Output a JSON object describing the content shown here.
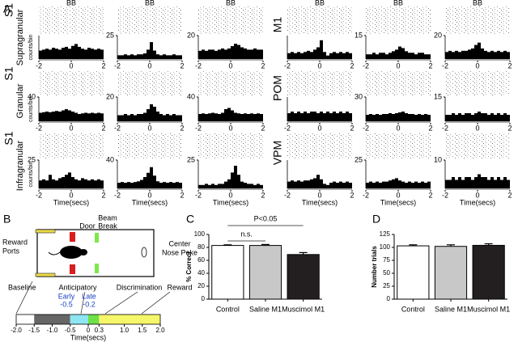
{
  "figure": {
    "panel_labels": [
      "A",
      "B",
      "C",
      "D"
    ]
  },
  "panel_a": {
    "rows": [
      {
        "area": "S1",
        "layer": "Supragranular",
        "ylabel": "counts/bin"
      },
      {
        "area": "S1",
        "layer": "Granular",
        "ylabel": "counts/bin"
      },
      {
        "area": "S1",
        "layer": "Infragranular",
        "ylabel": "counts/bin"
      }
    ],
    "right_rows": [
      {
        "area": "M1"
      },
      {
        "area": "POM"
      },
      {
        "area": "VPM"
      }
    ]
  },
  "panel_b": {
    "door": "Door",
    "beam_break": [
      "Beam",
      "Break"
    ],
    "reward_ports": [
      "Reward",
      "Ports"
    ],
    "center_nose_poke": [
      "Center",
      "Nose Poke"
    ],
    "baseline": "Baseline",
    "anticipatory": "Anticipatory",
    "discrimination": "Discrimination",
    "reward": "Reward",
    "early": "Early",
    "early_time": -0.5,
    "late": "Late",
    "late_time": -0.2,
    "timeline": {
      "xlim": [
        -2,
        2
      ],
      "xticks": [
        {
          "value": -2,
          "label": "-2.0"
        },
        -1.5,
        {
          "value": -1,
          "label": "-1.0"
        },
        -0.5,
        0,
        0.3,
        {
          "value": 1,
          "label": "1.0"
        },
        1.5,
        {
          "value": 2,
          "label": "2.0"
        }
      ],
      "xlabel": "Time(secs)",
      "segments": [
        {
          "start": -2,
          "end": -1.5,
          "color": "#ffffff"
        },
        {
          "start": -1.5,
          "end": -0.5,
          "color": "#666666"
        },
        {
          "start": -0.5,
          "end": 0,
          "color": "#8ee6f2"
        },
        {
          "start": 0,
          "end": 0.3,
          "color": "#6ee048"
        },
        {
          "start": 0.3,
          "end": 2,
          "color": "#f6f66a"
        }
      ]
    }
  },
  "chart_data": [
    {
      "type": "histogram",
      "title": "BB",
      "bins": [
        -2,
        -1.8,
        -1.6,
        -1.4,
        -1.2,
        -1,
        -0.8,
        -0.6,
        -0.4,
        -0.2,
        0,
        0.2,
        0.4,
        0.6,
        0.8,
        1,
        1.2,
        1.4,
        1.6,
        1.8,
        2
      ],
      "values": [
        9,
        10,
        11,
        10,
        12,
        11,
        10,
        12,
        13,
        11,
        14,
        16,
        13,
        11,
        10,
        12,
        11,
        10,
        11,
        10
      ],
      "xlim": [
        -2,
        2
      ],
      "xticks": [
        -2,
        0,
        2
      ],
      "ylim": [
        0,
        25
      ],
      "color": "#000000"
    },
    {
      "type": "histogram",
      "title": "BB",
      "bins": [
        -2,
        -1.8,
        -1.6,
        -1.4,
        -1.2,
        -1,
        -0.8,
        -0.6,
        -0.4,
        -0.2,
        0,
        0.2,
        0.4,
        0.6,
        0.8,
        1,
        1.2,
        1.4,
        1.6,
        1.8,
        2
      ],
      "values": [
        4,
        4,
        5,
        4,
        5,
        4,
        5,
        5,
        6,
        10,
        18,
        9,
        5,
        4,
        5,
        4,
        4,
        5,
        4,
        4
      ],
      "xlim": [
        -2,
        2
      ],
      "xticks": [
        -2,
        0,
        2
      ],
      "ylim": [
        0,
        25
      ],
      "yticks": [
        25
      ],
      "color": "#000000"
    },
    {
      "type": "histogram",
      "title": "BB",
      "bins": [
        -2,
        -1.8,
        -1.6,
        -1.4,
        -1.2,
        -1,
        -0.8,
        -0.6,
        -0.4,
        -0.2,
        0,
        0.2,
        0.4,
        0.6,
        0.8,
        1,
        1.2,
        1.4,
        1.6,
        1.8,
        2
      ],
      "values": [
        7,
        8,
        7,
        8,
        8,
        7,
        8,
        9,
        8,
        9,
        11,
        13,
        12,
        10,
        9,
        8,
        8,
        9,
        8,
        8
      ],
      "xlim": [
        -2,
        2
      ],
      "xticks": [
        -2,
        0,
        2
      ],
      "ylim": [
        0,
        20
      ],
      "yticks": [
        20
      ],
      "color": "#000000"
    },
    {
      "type": "histogram",
      "title": "BB",
      "bins": [
        -2,
        -1.8,
        -1.6,
        -1.4,
        -1.2,
        -1,
        -0.8,
        -0.6,
        -0.4,
        -0.2,
        0,
        0.2,
        0.4,
        0.6,
        0.8,
        1,
        1.2,
        1.4,
        1.6,
        1.8,
        2
      ],
      "values": [
        5,
        6,
        5,
        6,
        5,
        6,
        7,
        6,
        8,
        10,
        16,
        6,
        3,
        5,
        6,
        5,
        6,
        5,
        6,
        5
      ],
      "xlim": [
        -2,
        2
      ],
      "xticks": [
        -2,
        0,
        2
      ],
      "ylim": [
        0,
        20
      ],
      "color": "#000000"
    },
    {
      "type": "histogram",
      "title": "BB",
      "bins": [
        -2,
        -1.8,
        -1.6,
        -1.4,
        -1.2,
        -1,
        -0.8,
        -0.6,
        -0.4,
        -0.2,
        0,
        0.2,
        0.4,
        0.6,
        0.8,
        1,
        1.2,
        1.4,
        1.6,
        1.8,
        2
      ],
      "values": [
        3,
        3,
        4,
        3,
        4,
        4,
        3,
        4,
        5,
        6,
        8,
        7,
        5,
        4,
        4,
        3,
        4,
        4,
        3,
        3
      ],
      "xlim": [
        -2,
        2
      ],
      "xticks": [
        -2,
        0,
        2
      ],
      "ylim": [
        0,
        15
      ],
      "yticks": [
        15
      ],
      "color": "#000000"
    },
    {
      "type": "histogram",
      "title": "BB",
      "bins": [
        -2,
        -1.8,
        -1.6,
        -1.4,
        -1.2,
        -1,
        -0.8,
        -0.6,
        -0.4,
        -0.2,
        0,
        0.2,
        0.4,
        0.6,
        0.8,
        1,
        1.2,
        1.4,
        1.6,
        1.8,
        2
      ],
      "values": [
        6,
        7,
        6,
        7,
        6,
        7,
        7,
        8,
        9,
        12,
        14,
        9,
        7,
        6,
        7,
        6,
        7,
        6,
        7,
        6
      ],
      "xlim": [
        -2,
        2
      ],
      "xticks": [
        -2,
        0,
        2
      ],
      "ylim": [
        0,
        20
      ],
      "yticks": [
        20
      ],
      "color": "#000000"
    },
    {
      "type": "histogram",
      "bins": [
        -2,
        -1.8,
        -1.6,
        -1.4,
        -1.2,
        -1,
        -0.8,
        -0.6,
        -0.4,
        -0.2,
        0,
        0.2,
        0.4,
        0.6,
        0.8,
        1,
        1.2,
        1.4,
        1.6,
        1.8,
        2
      ],
      "values": [
        14,
        15,
        16,
        15,
        16,
        17,
        16,
        18,
        20,
        18,
        16,
        14,
        12,
        13,
        14,
        13,
        14,
        13,
        14,
        13
      ],
      "xlim": [
        -2,
        2
      ],
      "xticks": [
        -2,
        0,
        2
      ],
      "ylim": [
        0,
        40
      ],
      "yticks": [
        40
      ],
      "color": "#000000"
    },
    {
      "type": "histogram",
      "bins": [
        -2,
        -1.8,
        -1.6,
        -1.4,
        -1.2,
        -1,
        -0.8,
        -0.6,
        -0.4,
        -0.2,
        0,
        0.2,
        0.4,
        0.6,
        0.8,
        1,
        1.2,
        1.4,
        1.6,
        1.8,
        2
      ],
      "values": [
        5,
        5,
        6,
        5,
        6,
        5,
        6,
        6,
        7,
        10,
        14,
        12,
        8,
        6,
        5,
        6,
        5,
        6,
        5,
        5
      ],
      "xlim": [
        -2,
        2
      ],
      "xticks": [
        -2,
        0,
        2
      ],
      "ylim": [
        0,
        20
      ],
      "yticks": [
        20
      ],
      "color": "#000000"
    },
    {
      "type": "histogram",
      "bins": [
        -2,
        -1.8,
        -1.6,
        -1.4,
        -1.2,
        -1,
        -0.8,
        -0.6,
        -0.4,
        -0.2,
        0,
        0.2,
        0.4,
        0.6,
        0.8,
        1,
        1.2,
        1.4,
        1.6,
        1.8,
        2
      ],
      "values": [
        12,
        13,
        12,
        13,
        14,
        13,
        12,
        14,
        20,
        22,
        18,
        14,
        13,
        12,
        13,
        12,
        13,
        12,
        13,
        12
      ],
      "xlim": [
        -2,
        2
      ],
      "xticks": [
        -2,
        0,
        2
      ],
      "ylim": [
        0,
        40
      ],
      "yticks": [
        40
      ],
      "color": "#000000"
    },
    {
      "type": "histogram",
      "bins": [
        -2,
        -1.8,
        -1.6,
        -1.4,
        -1.2,
        -1,
        -0.8,
        -0.6,
        -0.4,
        -0.2,
        0,
        0.2,
        0.4,
        0.6,
        0.8,
        1,
        1.2,
        1.4,
        1.6,
        1.8,
        2
      ],
      "values": [
        5,
        6,
        5,
        6,
        5,
        6,
        5,
        6,
        6,
        5,
        6,
        5,
        6,
        5,
        6,
        5,
        6,
        5,
        6,
        5
      ],
      "xlim": [
        -2,
        2
      ],
      "xticks": [
        -2,
        0,
        2
      ],
      "ylim": [
        0,
        15
      ],
      "color": "#000000"
    },
    {
      "type": "histogram",
      "bins": [
        -2,
        -1.8,
        -1.6,
        -1.4,
        -1.2,
        -1,
        -0.8,
        -0.6,
        -0.4,
        -0.2,
        0,
        0.2,
        0.4,
        0.6,
        0.8,
        1,
        1.2,
        1.4,
        1.6,
        1.8,
        2
      ],
      "values": [
        8,
        9,
        8,
        9,
        8,
        9,
        9,
        10,
        9,
        10,
        11,
        12,
        10,
        9,
        9,
        8,
        9,
        8,
        9,
        8
      ],
      "xlim": [
        -2,
        2
      ],
      "xticks": [
        -2,
        0,
        2
      ],
      "ylim": [
        0,
        30
      ],
      "yticks": [
        30
      ],
      "color": "#000000"
    },
    {
      "type": "histogram",
      "bins": [
        -2,
        -1.8,
        -1.6,
        -1.4,
        -1.2,
        -1,
        -0.8,
        -0.6,
        -0.4,
        -0.2,
        0,
        0.2,
        0.4,
        0.6,
        0.8,
        1,
        1.2,
        1.4,
        1.6,
        1.8,
        2
      ],
      "values": [
        4,
        4,
        5,
        4,
        5,
        4,
        5,
        5,
        4,
        5,
        6,
        5,
        5,
        4,
        5,
        4,
        5,
        4,
        5,
        4
      ],
      "xlim": [
        -2,
        2
      ],
      "xticks": [
        -2,
        0,
        2
      ],
      "ylim": [
        0,
        15
      ],
      "yticks": [
        15
      ],
      "color": "#000000"
    },
    {
      "type": "histogram",
      "xlabel": "Time(secs)",
      "bins": [
        -2,
        -1.8,
        -1.6,
        -1.4,
        -1.2,
        -1,
        -0.8,
        -0.6,
        -0.4,
        -0.2,
        0,
        0.2,
        0.4,
        0.6,
        0.8,
        1,
        1.2,
        1.4,
        1.6,
        1.8,
        2
      ],
      "values": [
        7,
        8,
        7,
        12,
        8,
        7,
        9,
        10,
        12,
        14,
        10,
        8,
        7,
        9,
        8,
        7,
        8,
        7,
        8,
        7
      ],
      "xlim": [
        -2,
        2
      ],
      "xticks": [
        -2,
        0,
        2
      ],
      "ylim": [
        0,
        25
      ],
      "yticks": [
        25
      ],
      "color": "#000000"
    },
    {
      "type": "histogram",
      "xlabel": "Time(secs)",
      "bins": [
        -2,
        -1.8,
        -1.6,
        -1.4,
        -1.2,
        -1,
        -0.8,
        -0.6,
        -0.4,
        -0.2,
        0,
        0.2,
        0.4,
        0.6,
        0.8,
        1,
        1.2,
        1.4,
        1.6,
        1.8,
        2
      ],
      "values": [
        8,
        9,
        8,
        9,
        8,
        9,
        10,
        12,
        16,
        22,
        30,
        18,
        10,
        8,
        9,
        8,
        9,
        8,
        9,
        8
      ],
      "xlim": [
        -2,
        2
      ],
      "xticks": [
        -2,
        0,
        2
      ],
      "ylim": [
        0,
        40
      ],
      "yticks": [
        40
      ],
      "color": "#000000"
    },
    {
      "type": "histogram",
      "xlabel": "Time(secs)",
      "bins": [
        -2,
        -1.8,
        -1.6,
        -1.4,
        -1.2,
        -1,
        -0.8,
        -0.6,
        -0.4,
        -0.2,
        0,
        0.2,
        0.4,
        0.6,
        0.8,
        1,
        1.2,
        1.4,
        1.6,
        1.8,
        2
      ],
      "values": [
        3,
        3,
        4,
        3,
        4,
        3,
        4,
        4,
        6,
        8,
        14,
        20,
        12,
        6,
        5,
        4,
        4,
        3,
        4,
        3
      ],
      "xlim": [
        -2,
        2
      ],
      "xticks": [
        -2,
        0,
        2
      ],
      "ylim": [
        0,
        25
      ],
      "yticks": [
        25
      ],
      "color": "#000000"
    },
    {
      "type": "histogram",
      "xlabel": "Time(secs)",
      "bins": [
        -2,
        -1.8,
        -1.6,
        -1.4,
        -1.2,
        -1,
        -0.8,
        -0.6,
        -0.4,
        -0.2,
        0,
        0.2,
        0.4,
        0.6,
        0.8,
        1,
        1.2,
        1.4,
        1.6,
        1.8,
        2
      ],
      "values": [
        6,
        7,
        6,
        7,
        6,
        7,
        7,
        8,
        9,
        12,
        8,
        4,
        3,
        5,
        6,
        5,
        6,
        5,
        6,
        5
      ],
      "xlim": [
        -2,
        2
      ],
      "xticks": [
        -2,
        0,
        2
      ],
      "ylim": [
        0,
        25
      ],
      "color": "#000000"
    },
    {
      "type": "histogram",
      "xlabel": "Time(secs)",
      "bins": [
        -2,
        -1.8,
        -1.6,
        -1.4,
        -1.2,
        -1,
        -0.8,
        -0.6,
        -0.4,
        -0.2,
        0,
        0.2,
        0.4,
        0.6,
        0.8,
        1,
        1.2,
        1.4,
        1.6,
        1.8,
        2
      ],
      "values": [
        5,
        6,
        5,
        6,
        5,
        6,
        6,
        7,
        8,
        9,
        7,
        6,
        5,
        6,
        5,
        6,
        5,
        6,
        5,
        6
      ],
      "xlim": [
        -2,
        2
      ],
      "xticks": [
        -2,
        0,
        2
      ],
      "ylim": [
        0,
        25
      ],
      "yticks": [
        25
      ],
      "color": "#000000"
    },
    {
      "type": "histogram",
      "xlabel": "Time(secs)",
      "bins": [
        -2,
        -1.8,
        -1.6,
        -1.4,
        -1.2,
        -1,
        -0.8,
        -0.6,
        -0.4,
        -0.2,
        0,
        0.2,
        0.4,
        0.6,
        0.8,
        1,
        1.2,
        1.4,
        1.6,
        1.8,
        2
      ],
      "values": [
        3,
        3,
        4,
        3,
        4,
        3,
        4,
        4,
        3,
        4,
        5,
        4,
        4,
        3,
        4,
        3,
        4,
        3,
        4,
        3
      ],
      "xlim": [
        -2,
        2
      ],
      "xticks": [
        -2,
        0,
        2
      ],
      "ylim": [
        0,
        10
      ],
      "yticks": [
        10
      ],
      "color": "#000000"
    },
    {
      "type": "bar",
      "ylabel": "% Correct",
      "categories": [
        "Control",
        "Saline M1",
        "Muscimol M1"
      ],
      "values": [
        83,
        83,
        69
      ],
      "errors": [
        1,
        1.5,
        3
      ],
      "colors": [
        "#ffffff",
        "#c8c8c8",
        "#231f20"
      ],
      "ylim": [
        0,
        100
      ],
      "yticks": [
        0,
        20,
        40,
        60,
        80,
        100
      ],
      "annotations": [
        "P<0.05",
        "n.s."
      ]
    },
    {
      "type": "bar",
      "ylabel": "Number trials",
      "categories": [
        "Control",
        "Saline M1",
        "Muscimol M1"
      ],
      "values": [
        103,
        102,
        104
      ],
      "errors": [
        2,
        3,
        3
      ],
      "colors": [
        "#ffffff",
        "#c8c8c8",
        "#231f20"
      ],
      "ylim": [
        0,
        125
      ],
      "yticks": [
        0,
        25,
        50,
        75,
        100,
        125
      ]
    }
  ]
}
